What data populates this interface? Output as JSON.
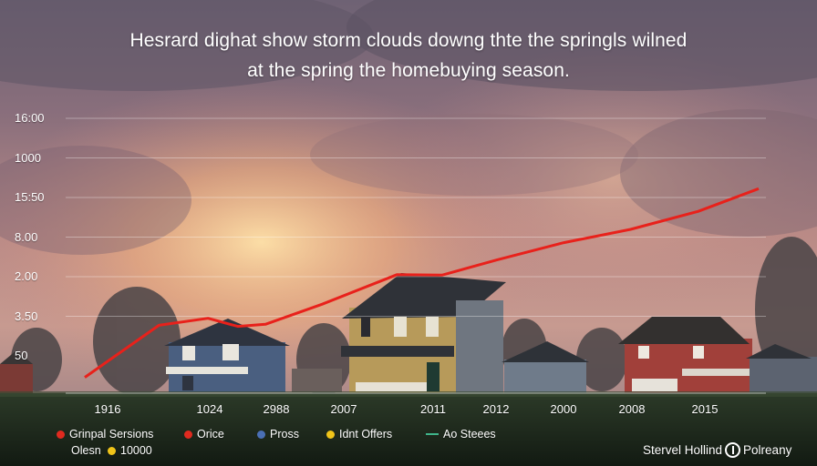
{
  "chart_data": {
    "type": "line",
    "title": "Hesrard dighat show storm clouds downg thte the springls wilned",
    "subtitle": "at the spring the homebuying season.",
    "y_tick_labels": [
      "16:00",
      "1000",
      "15:50",
      "8.00",
      "2.00",
      "3.50",
      "50"
    ],
    "x_tick_labels": [
      "1916",
      "1024",
      "2988",
      "2007",
      "2011",
      "2012",
      "2000",
      "2008",
      "2015"
    ],
    "ylim": [
      50,
      16.0
    ],
    "series": [
      {
        "color": "#e8211b",
        "points": [
          [
            0.0,
            0.082
          ],
          [
            0.11,
            0.352
          ],
          [
            0.183,
            0.388
          ],
          [
            0.227,
            0.346
          ],
          [
            0.268,
            0.357
          ],
          [
            0.352,
            0.461
          ],
          [
            0.463,
            0.614
          ],
          [
            0.53,
            0.612
          ],
          [
            0.611,
            0.69
          ],
          [
            0.711,
            0.78
          ],
          [
            0.81,
            0.849
          ],
          [
            0.91,
            0.942
          ],
          [
            1.0,
            1.06
          ]
        ]
      }
    ],
    "grid": true,
    "legend": {
      "placement": "bottom-left",
      "items": [
        {
          "label": "Grinpal Sersions",
          "marker": "dot",
          "color": "#e02a1f"
        },
        {
          "label": "Orice",
          "marker": "dot",
          "color": "#e02a1f"
        },
        {
          "label": "Pross",
          "marker": "dot",
          "color": "#4a6fb5"
        },
        {
          "label": "Idnt Offers",
          "marker": "dot",
          "color": "#f0c419"
        },
        {
          "label": "Ao Steees",
          "marker": "dash",
          "color": "#3fb58a"
        },
        {
          "label": "Olesn",
          "marker": "none",
          "color": ""
        },
        {
          "label": "10000",
          "marker": "dot",
          "color": "#f0c419"
        }
      ]
    }
  },
  "brand": {
    "name": "Stervel Hollind",
    "suffix": "Polreany"
  }
}
